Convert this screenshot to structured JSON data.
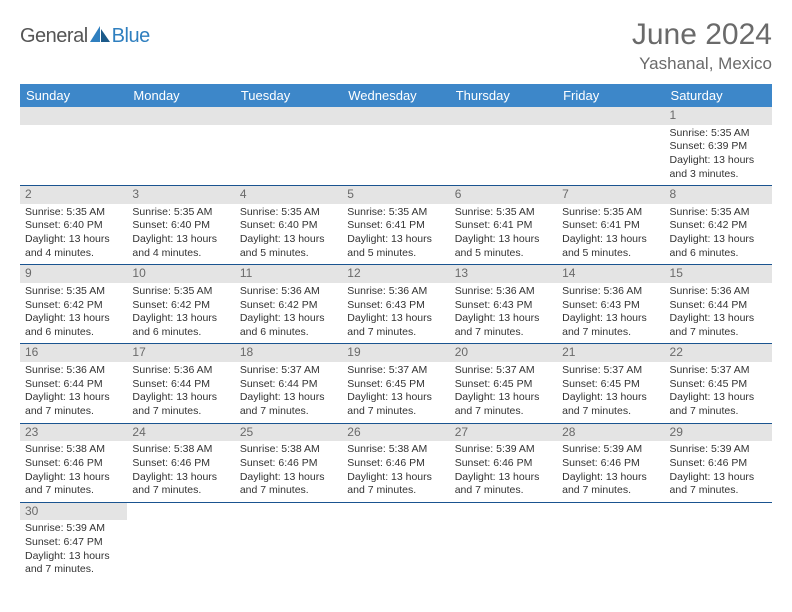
{
  "logo": {
    "general": "General",
    "blue": "Blue"
  },
  "header": {
    "title": "June 2024",
    "location": "Yashanal, Mexico"
  },
  "day_labels": [
    "Sunday",
    "Monday",
    "Tuesday",
    "Wednesday",
    "Thursday",
    "Friday",
    "Saturday"
  ],
  "colors": {
    "header_bg": "#3d87c9",
    "row_divider": "#1a5490",
    "daynum_bg": "#e4e4e4",
    "title_color": "#6a6a6a"
  },
  "weeks": [
    [
      null,
      null,
      null,
      null,
      null,
      null,
      {
        "n": "1",
        "sunrise": "Sunrise: 5:35 AM",
        "sunset": "Sunset: 6:39 PM",
        "daylight": "Daylight: 13 hours and 3 minutes."
      }
    ],
    [
      {
        "n": "2",
        "sunrise": "Sunrise: 5:35 AM",
        "sunset": "Sunset: 6:40 PM",
        "daylight": "Daylight: 13 hours and 4 minutes."
      },
      {
        "n": "3",
        "sunrise": "Sunrise: 5:35 AM",
        "sunset": "Sunset: 6:40 PM",
        "daylight": "Daylight: 13 hours and 4 minutes."
      },
      {
        "n": "4",
        "sunrise": "Sunrise: 5:35 AM",
        "sunset": "Sunset: 6:40 PM",
        "daylight": "Daylight: 13 hours and 5 minutes."
      },
      {
        "n": "5",
        "sunrise": "Sunrise: 5:35 AM",
        "sunset": "Sunset: 6:41 PM",
        "daylight": "Daylight: 13 hours and 5 minutes."
      },
      {
        "n": "6",
        "sunrise": "Sunrise: 5:35 AM",
        "sunset": "Sunset: 6:41 PM",
        "daylight": "Daylight: 13 hours and 5 minutes."
      },
      {
        "n": "7",
        "sunrise": "Sunrise: 5:35 AM",
        "sunset": "Sunset: 6:41 PM",
        "daylight": "Daylight: 13 hours and 5 minutes."
      },
      {
        "n": "8",
        "sunrise": "Sunrise: 5:35 AM",
        "sunset": "Sunset: 6:42 PM",
        "daylight": "Daylight: 13 hours and 6 minutes."
      }
    ],
    [
      {
        "n": "9",
        "sunrise": "Sunrise: 5:35 AM",
        "sunset": "Sunset: 6:42 PM",
        "daylight": "Daylight: 13 hours and 6 minutes."
      },
      {
        "n": "10",
        "sunrise": "Sunrise: 5:35 AM",
        "sunset": "Sunset: 6:42 PM",
        "daylight": "Daylight: 13 hours and 6 minutes."
      },
      {
        "n": "11",
        "sunrise": "Sunrise: 5:36 AM",
        "sunset": "Sunset: 6:42 PM",
        "daylight": "Daylight: 13 hours and 6 minutes."
      },
      {
        "n": "12",
        "sunrise": "Sunrise: 5:36 AM",
        "sunset": "Sunset: 6:43 PM",
        "daylight": "Daylight: 13 hours and 7 minutes."
      },
      {
        "n": "13",
        "sunrise": "Sunrise: 5:36 AM",
        "sunset": "Sunset: 6:43 PM",
        "daylight": "Daylight: 13 hours and 7 minutes."
      },
      {
        "n": "14",
        "sunrise": "Sunrise: 5:36 AM",
        "sunset": "Sunset: 6:43 PM",
        "daylight": "Daylight: 13 hours and 7 minutes."
      },
      {
        "n": "15",
        "sunrise": "Sunrise: 5:36 AM",
        "sunset": "Sunset: 6:44 PM",
        "daylight": "Daylight: 13 hours and 7 minutes."
      }
    ],
    [
      {
        "n": "16",
        "sunrise": "Sunrise: 5:36 AM",
        "sunset": "Sunset: 6:44 PM",
        "daylight": "Daylight: 13 hours and 7 minutes."
      },
      {
        "n": "17",
        "sunrise": "Sunrise: 5:36 AM",
        "sunset": "Sunset: 6:44 PM",
        "daylight": "Daylight: 13 hours and 7 minutes."
      },
      {
        "n": "18",
        "sunrise": "Sunrise: 5:37 AM",
        "sunset": "Sunset: 6:44 PM",
        "daylight": "Daylight: 13 hours and 7 minutes."
      },
      {
        "n": "19",
        "sunrise": "Sunrise: 5:37 AM",
        "sunset": "Sunset: 6:45 PM",
        "daylight": "Daylight: 13 hours and 7 minutes."
      },
      {
        "n": "20",
        "sunrise": "Sunrise: 5:37 AM",
        "sunset": "Sunset: 6:45 PM",
        "daylight": "Daylight: 13 hours and 7 minutes."
      },
      {
        "n": "21",
        "sunrise": "Sunrise: 5:37 AM",
        "sunset": "Sunset: 6:45 PM",
        "daylight": "Daylight: 13 hours and 7 minutes."
      },
      {
        "n": "22",
        "sunrise": "Sunrise: 5:37 AM",
        "sunset": "Sunset: 6:45 PM",
        "daylight": "Daylight: 13 hours and 7 minutes."
      }
    ],
    [
      {
        "n": "23",
        "sunrise": "Sunrise: 5:38 AM",
        "sunset": "Sunset: 6:46 PM",
        "daylight": "Daylight: 13 hours and 7 minutes."
      },
      {
        "n": "24",
        "sunrise": "Sunrise: 5:38 AM",
        "sunset": "Sunset: 6:46 PM",
        "daylight": "Daylight: 13 hours and 7 minutes."
      },
      {
        "n": "25",
        "sunrise": "Sunrise: 5:38 AM",
        "sunset": "Sunset: 6:46 PM",
        "daylight": "Daylight: 13 hours and 7 minutes."
      },
      {
        "n": "26",
        "sunrise": "Sunrise: 5:38 AM",
        "sunset": "Sunset: 6:46 PM",
        "daylight": "Daylight: 13 hours and 7 minutes."
      },
      {
        "n": "27",
        "sunrise": "Sunrise: 5:39 AM",
        "sunset": "Sunset: 6:46 PM",
        "daylight": "Daylight: 13 hours and 7 minutes."
      },
      {
        "n": "28",
        "sunrise": "Sunrise: 5:39 AM",
        "sunset": "Sunset: 6:46 PM",
        "daylight": "Daylight: 13 hours and 7 minutes."
      },
      {
        "n": "29",
        "sunrise": "Sunrise: 5:39 AM",
        "sunset": "Sunset: 6:46 PM",
        "daylight": "Daylight: 13 hours and 7 minutes."
      }
    ],
    [
      {
        "n": "30",
        "sunrise": "Sunrise: 5:39 AM",
        "sunset": "Sunset: 6:47 PM",
        "daylight": "Daylight: 13 hours and 7 minutes."
      },
      null,
      null,
      null,
      null,
      null,
      null
    ]
  ]
}
